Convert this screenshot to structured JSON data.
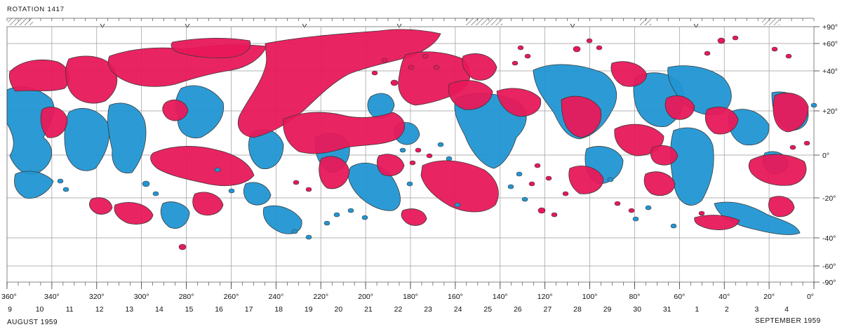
{
  "title": "ROTATION 1417",
  "bottom_left_label": "AUGUST 1959",
  "bottom_right_label": "SEPTEMBER 1959",
  "colors": {
    "positive_polarity": "#e8185a",
    "negative_polarity": "#2196d3",
    "grid": "#9a9a9a",
    "outline": "#3a3a3a"
  },
  "latitude_labels": [
    "+90°",
    "+60°",
    "+40°",
    "+20°",
    "0°",
    "-20°",
    "-40°",
    "-60°",
    "-90°"
  ],
  "latitude_values": [
    90,
    60,
    40,
    20,
    0,
    -20,
    -40,
    -60,
    -90
  ],
  "longitude_labels": [
    "360°",
    "340°",
    "320°",
    "300°",
    "280°",
    "260°",
    "240°",
    "220°",
    "200°",
    "180°",
    "160°",
    "140°",
    "120°",
    "100°",
    "80°",
    "60°",
    "40°",
    "20°",
    "0°"
  ],
  "longitude_values": [
    360,
    340,
    320,
    300,
    280,
    260,
    240,
    220,
    200,
    180,
    160,
    140,
    120,
    100,
    80,
    60,
    40,
    20,
    0
  ],
  "date_labels": [
    "9",
    "10",
    "11",
    "12",
    "13",
    "14",
    "15",
    "16",
    "17",
    "18",
    "19",
    "20",
    "21",
    "22",
    "23",
    "24",
    "25",
    "26",
    "27",
    "28",
    "29",
    "30",
    "31",
    "1",
    "2",
    "3",
    "4"
  ],
  "date_longitudes": [
    360,
    340,
    327,
    320,
    300,
    287,
    280,
    260,
    247,
    240,
    220,
    207,
    200,
    180,
    167,
    160,
    140,
    127,
    120,
    100,
    87,
    80,
    60,
    47,
    40,
    20,
    7
  ]
}
